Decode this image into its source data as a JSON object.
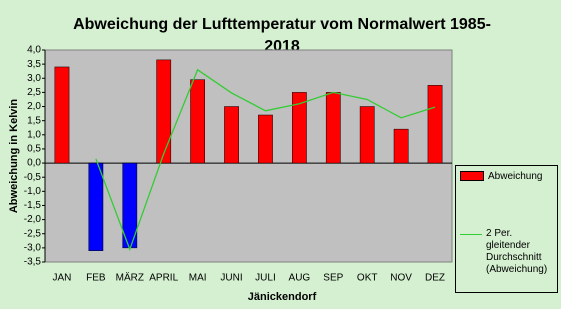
{
  "chart_data": {
    "type": "bar",
    "title": "Abweichung der Lufttemperatur vom Normalwert 1985-2018",
    "x_label": "Jänickendorf",
    "y_label": "Abweichung in Kelvin",
    "categories": [
      "JAN",
      "FEB",
      "MÄRZ",
      "APRIL",
      "MAI",
      "JUNI",
      "JULI",
      "AUG",
      "SEP",
      "OKT",
      "NOV",
      "DEZ"
    ],
    "series": [
      {
        "name": "Abweichung",
        "type": "bar",
        "color": "#ff0000",
        "colors": [
          "#ff0000",
          "#0000ff",
          "#0000ff",
          "#ff0000",
          "#ff0000",
          "#ff0000",
          "#ff0000",
          "#ff0000",
          "#ff0000",
          "#ff0000",
          "#ff0000",
          "#ff0000"
        ],
        "values": [
          3.4,
          -3.1,
          -3.0,
          3.65,
          2.95,
          2.0,
          1.7,
          2.5,
          2.5,
          2.0,
          1.2,
          2.75
        ]
      },
      {
        "name": "2 Per. gleitender Durchschnitt (Abweichung)",
        "type": "line",
        "color": "#33cc33",
        "values": [
          null,
          0.15,
          -3.05,
          0.33,
          3.3,
          2.48,
          1.85,
          2.1,
          2.5,
          2.25,
          1.6,
          1.98
        ]
      }
    ],
    "ylim": [
      -3.5,
      4.0
    ],
    "yticks": [
      {
        "value": 4.0,
        "label": "4,0"
      },
      {
        "value": 3.5,
        "label": "3,5"
      },
      {
        "value": 3.0,
        "label": "3,0"
      },
      {
        "value": 2.5,
        "label": "2,5"
      },
      {
        "value": 2.0,
        "label": "2,0"
      },
      {
        "value": 1.5,
        "label": "1,5"
      },
      {
        "value": 1.0,
        "label": "1,0"
      },
      {
        "value": 0.5,
        "label": "0,5"
      },
      {
        "value": 0.0,
        "label": "0,0"
      },
      {
        "value": -0.5,
        "label": "-0,5"
      },
      {
        "value": -1.0,
        "label": "-1,0"
      },
      {
        "value": -1.5,
        "label": "-1,5"
      },
      {
        "value": -2.0,
        "label": "-2,0"
      },
      {
        "value": -2.5,
        "label": "-2,5"
      },
      {
        "value": -3.0,
        "label": "-3,0"
      },
      {
        "value": -3.5,
        "label": "-3,5"
      }
    ],
    "grid": false,
    "legend": "right"
  }
}
